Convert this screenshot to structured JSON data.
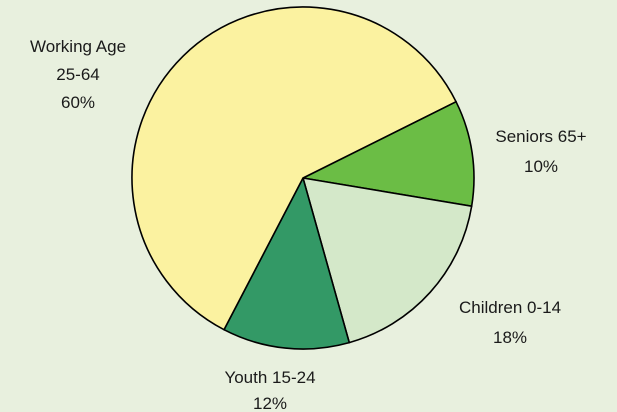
{
  "chart_data": {
    "type": "pie",
    "title": "",
    "slices": [
      {
        "name": "Seniors 65+",
        "label_line1": "Seniors 65+",
        "label_line2": "10%",
        "value": 10,
        "color": "#6bbd45"
      },
      {
        "name": "Children 0-14",
        "label_line1": "Children 0-14",
        "label_line2": "18%",
        "value": 18,
        "color": "#d4e8c9"
      },
      {
        "name": "Youth 15-24",
        "label_line1": "Youth 15-24",
        "label_line2": "12%",
        "value": 12,
        "color": "#339966"
      },
      {
        "name": "Working Age 25-64",
        "label_line1": "Working Age",
        "label_line2": "25-64",
        "label_line3": "60%",
        "value": 60,
        "color": "#fbf2a0"
      }
    ],
    "background": "#e8f0de",
    "outline_color": "#000000"
  }
}
